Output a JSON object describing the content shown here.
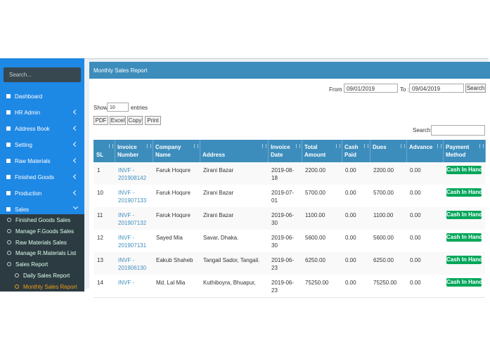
{
  "sidebar": {
    "search_placeholder": "Search...",
    "menu": [
      "Dashboard",
      "HR Admin",
      "Address Book",
      "Setting",
      "Raw Materials",
      "Finished Goods",
      "Production",
      "Sales"
    ],
    "submenu": [
      "Finished Goods Sales",
      "Manage F.Goods Sales",
      "Raw Materials Sales",
      "Manage R.Materials List",
      "Sales Report"
    ],
    "report_submenu": [
      "Daily Sales Report",
      "Monthly Sales Report"
    ]
  },
  "panel": {
    "title": "Monthly Sales Report",
    "from_label": "From :",
    "from_date": "09/01/2019",
    "to_label": "To :",
    "to_date": "09/04/2019",
    "search_button": "Search",
    "show_label": "Show",
    "entries_value": "10",
    "entries_label": "entries",
    "buttons": [
      "PDF",
      "Excel",
      "Copy",
      "Print"
    ],
    "search_label": "Search:"
  },
  "table": {
    "columns": [
      "SL",
      "Invoice Number",
      "Company Name",
      "Address",
      "Invoice Date",
      "Total Amount",
      "Cash Paid",
      "Dues",
      "Advance",
      "Payment Method"
    ],
    "rows": [
      [
        "1",
        "INVF - 201908142",
        "Faruk Hoqure",
        "Zirani Bazar",
        "2019-08-18",
        "2200.00",
        "0.00",
        "2200.00",
        "0.00",
        "Cash In Hand"
      ],
      [
        "10",
        "INVF - 201907133",
        "Faruk Hoqure",
        "Zirani Bazar",
        "2019-07-01",
        "5700.00",
        "0.00",
        "5700.00",
        "0.00",
        "Cash In Hand"
      ],
      [
        "11",
        "INVF - 201907132",
        "Faruk Hoqure",
        "Zirani Bazar",
        "2019-06-30",
        "1100.00",
        "0.00",
        "1100.00",
        "0.00",
        "Cash In Hand"
      ],
      [
        "12",
        "INVF - 201907131",
        "Sayed Mia",
        "Savar, Dhaka.",
        "2019-06-30",
        "5600.00",
        "0.00",
        "5600.00",
        "0.00",
        "Cash In Hand"
      ],
      [
        "13",
        "INVF - 201906130",
        "Eakub Shaheb",
        "Tangail Sador, Tangail.",
        "2019-06-23",
        "6250.00",
        "0.00",
        "6250.00",
        "0.00",
        "Cash In Hand"
      ],
      [
        "14",
        "INVF -",
        "Md. Lal Mia",
        "Kuthiboyra, Bhuapur,",
        "2019-06-23",
        "75250.00",
        "0.00",
        "75250.00",
        "0.00",
        "Cash In Hand"
      ]
    ]
  }
}
